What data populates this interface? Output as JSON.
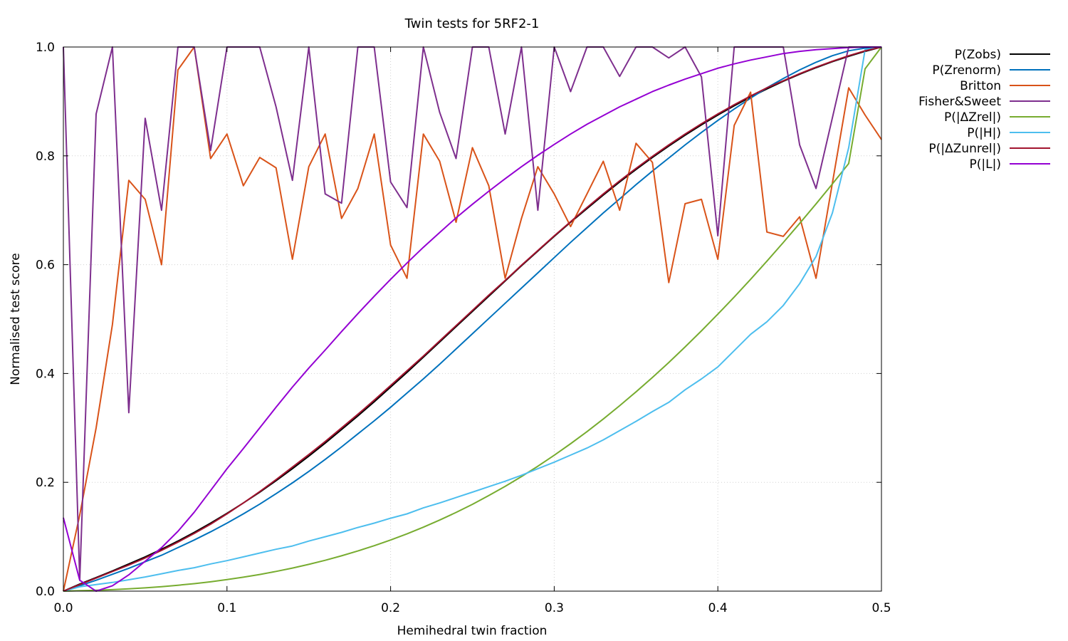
{
  "chart_data": {
    "type": "line",
    "title": "Twin tests for 5RF2-1",
    "xlabel": "Hemihedral twin fraction",
    "ylabel": "Normalised test score",
    "xlim": [
      0,
      0.5
    ],
    "ylim": [
      0,
      1
    ],
    "grid": true,
    "legend_position": "outside-top-right",
    "x_ticks": [
      "0.0",
      "0.1",
      "0.2",
      "0.3",
      "0.4",
      "0.5"
    ],
    "y_ticks": [
      "0.0",
      "0.2",
      "0.4",
      "0.6",
      "0.8",
      "1.0"
    ],
    "x": [
      0.0,
      0.01,
      0.02,
      0.03,
      0.04,
      0.05,
      0.06,
      0.07,
      0.08,
      0.09,
      0.1,
      0.11,
      0.12,
      0.13,
      0.14,
      0.15,
      0.16,
      0.17,
      0.18,
      0.19,
      0.2,
      0.21,
      0.22,
      0.23,
      0.24,
      0.25,
      0.26,
      0.27,
      0.28,
      0.29,
      0.3,
      0.31,
      0.32,
      0.33,
      0.34,
      0.35,
      0.36,
      0.37,
      0.38,
      0.39,
      0.4,
      0.41,
      0.42,
      0.43,
      0.44,
      0.45,
      0.46,
      0.47,
      0.48,
      0.49,
      0.5
    ],
    "series": [
      {
        "name": "P(Zobs)",
        "color": "#000000",
        "values": [
          0,
          0.013,
          0.025,
          0.037,
          0.05,
          0.063,
          0.077,
          0.092,
          0.108,
          0.125,
          0.143,
          0.162,
          0.182,
          0.203,
          0.225,
          0.248,
          0.272,
          0.297,
          0.322,
          0.348,
          0.375,
          0.402,
          0.43,
          0.458,
          0.486,
          0.514,
          0.542,
          0.57,
          0.598,
          0.625,
          0.652,
          0.678,
          0.703,
          0.728,
          0.752,
          0.775,
          0.797,
          0.818,
          0.838,
          0.857,
          0.875,
          0.892,
          0.908,
          0.923,
          0.937,
          0.95,
          0.962,
          0.973,
          0.983,
          0.992,
          1.0
        ]
      },
      {
        "name": "P(Zrenorm)",
        "color": "#0072bd",
        "values": [
          0,
          0.01,
          0.02,
          0.031,
          0.042,
          0.054,
          0.066,
          0.08,
          0.094,
          0.109,
          0.125,
          0.142,
          0.16,
          0.179,
          0.199,
          0.22,
          0.242,
          0.265,
          0.289,
          0.313,
          0.338,
          0.364,
          0.39,
          0.417,
          0.445,
          0.473,
          0.501,
          0.529,
          0.557,
          0.585,
          0.613,
          0.641,
          0.668,
          0.695,
          0.721,
          0.747,
          0.772,
          0.796,
          0.82,
          0.843,
          0.865,
          0.886,
          0.906,
          0.925,
          0.942,
          0.958,
          0.972,
          0.984,
          0.993,
          0.998,
          1.0
        ]
      },
      {
        "name": "Britton",
        "color": "#d95319",
        "values": [
          0,
          0.14,
          0.3,
          0.49,
          0.755,
          0.72,
          0.6,
          0.958,
          1.0,
          0.795,
          0.84,
          0.745,
          0.797,
          0.778,
          0.61,
          0.78,
          0.84,
          0.685,
          0.74,
          0.84,
          0.636,
          0.575,
          0.84,
          0.79,
          0.678,
          0.815,
          0.745,
          0.575,
          0.685,
          0.78,
          0.73,
          0.67,
          0.73,
          0.79,
          0.7,
          0.823,
          0.788,
          0.567,
          0.712,
          0.72,
          0.61,
          0.856,
          0.917,
          0.66,
          0.652,
          0.688,
          0.575,
          0.75,
          0.925,
          0.875,
          0.83
        ]
      },
      {
        "name": "Fisher&Sweet",
        "color": "#7e2f8e",
        "values": [
          1.0,
          0.02,
          0.877,
          1.0,
          0.328,
          0.869,
          0.7,
          1.0,
          1.0,
          0.81,
          1.0,
          1.0,
          1.0,
          0.89,
          0.755,
          1.0,
          0.73,
          0.713,
          1.0,
          1.0,
          0.752,
          0.705,
          1.0,
          0.88,
          0.795,
          1.0,
          1.0,
          0.84,
          1.0,
          0.7,
          1.0,
          0.918,
          1.0,
          1.0,
          0.946,
          1.0,
          1.0,
          0.98,
          1.0,
          0.945,
          0.653,
          1.0,
          1.0,
          1.0,
          1.0,
          0.82,
          0.74,
          0.87,
          1.0,
          1.0,
          1.0
        ]
      },
      {
        "name": "P(|ΔZrel|)",
        "color": "#77ac30",
        "values": [
          0,
          0.0008,
          0.0016,
          0.0028,
          0.0042,
          0.006,
          0.0082,
          0.0108,
          0.0138,
          0.0172,
          0.0212,
          0.0256,
          0.0306,
          0.0362,
          0.0424,
          0.0492,
          0.0567,
          0.0649,
          0.0738,
          0.0835,
          0.094,
          0.1053,
          0.1175,
          0.1306,
          0.1446,
          0.1596,
          0.1756,
          0.1926,
          0.2106,
          0.2296,
          0.2497,
          0.2709,
          0.2931,
          0.3164,
          0.3408,
          0.3662,
          0.3927,
          0.4202,
          0.4488,
          0.4784,
          0.509,
          0.5405,
          0.573,
          0.6064,
          0.6407,
          0.6758,
          0.7117,
          0.7484,
          0.7858,
          0.96,
          1.0
        ]
      },
      {
        "name": "P(|H|)",
        "color": "#4dbeee",
        "values": [
          0,
          0.008,
          0.012,
          0.016,
          0.021,
          0.026,
          0.032,
          0.038,
          0.043,
          0.05,
          0.056,
          0.063,
          0.07,
          0.077,
          0.083,
          0.092,
          0.1,
          0.108,
          0.117,
          0.125,
          0.134,
          0.142,
          0.153,
          0.162,
          0.172,
          0.182,
          0.192,
          0.202,
          0.213,
          0.225,
          0.237,
          0.25,
          0.263,
          0.278,
          0.295,
          0.312,
          0.33,
          0.347,
          0.37,
          0.39,
          0.412,
          0.442,
          0.472,
          0.495,
          0.525,
          0.565,
          0.615,
          0.695,
          0.815,
          0.995,
          1.0
        ]
      },
      {
        "name": "P(|ΔZunrel|)",
        "color": "#a2142f",
        "values": [
          0,
          0.012,
          0.024,
          0.036,
          0.048,
          0.061,
          0.075,
          0.09,
          0.106,
          0.123,
          0.142,
          0.162,
          0.183,
          0.205,
          0.228,
          0.251,
          0.275,
          0.3,
          0.325,
          0.351,
          0.378,
          0.405,
          0.432,
          0.46,
          0.488,
          0.516,
          0.544,
          0.571,
          0.599,
          0.626,
          0.653,
          0.679,
          0.705,
          0.73,
          0.754,
          0.777,
          0.799,
          0.82,
          0.84,
          0.859,
          0.877,
          0.894,
          0.91,
          0.925,
          0.938,
          0.951,
          0.963,
          0.974,
          0.984,
          0.993,
          1.0
        ]
      },
      {
        "name": "P(|L|)",
        "color": "#9400d3",
        "values": [
          0.135,
          0.02,
          0.0,
          0.01,
          0.03,
          0.055,
          0.08,
          0.11,
          0.145,
          0.185,
          0.225,
          0.262,
          0.3,
          0.338,
          0.375,
          0.41,
          0.443,
          0.477,
          0.51,
          0.542,
          0.573,
          0.603,
          0.632,
          0.659,
          0.686,
          0.711,
          0.735,
          0.758,
          0.78,
          0.801,
          0.821,
          0.84,
          0.858,
          0.874,
          0.89,
          0.904,
          0.918,
          0.93,
          0.941,
          0.951,
          0.961,
          0.969,
          0.976,
          0.982,
          0.988,
          0.992,
          0.995,
          0.997,
          0.999,
          1.0,
          1.0
        ]
      }
    ]
  }
}
